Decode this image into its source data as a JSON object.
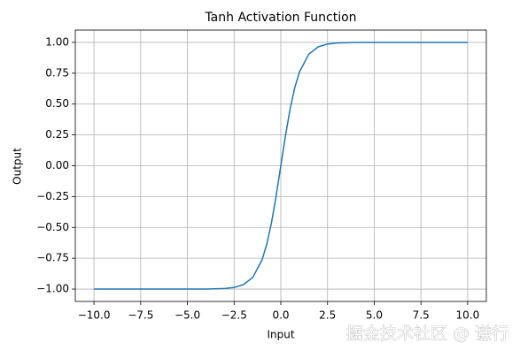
{
  "chart_data": {
    "type": "line",
    "title": "Tanh Activation Function",
    "x_label": "Input",
    "y_label": "Output",
    "x": [
      -10,
      -5,
      -4,
      -3,
      -2.5,
      -2,
      -1.5,
      -1,
      -0.75,
      -0.5,
      -0.25,
      0,
      0.25,
      0.5,
      0.75,
      1,
      1.5,
      2,
      2.5,
      3,
      4,
      5,
      10
    ],
    "series": [
      {
        "name": "tanh",
        "color": "#1f77b4",
        "values": [
          -1.0,
          -0.9999,
          -0.9993,
          -0.9951,
          -0.9866,
          -0.964,
          -0.9051,
          -0.7616,
          -0.6351,
          -0.4621,
          -0.2449,
          0,
          0.2449,
          0.4621,
          0.6351,
          0.7616,
          0.9051,
          0.964,
          0.9866,
          0.9951,
          0.9993,
          0.9999,
          1.0
        ]
      }
    ],
    "xlim": [
      -11,
      11
    ],
    "xticks": [
      {
        "value": -10,
        "label": "−10.0"
      },
      {
        "value": -7.5,
        "label": "−7.5"
      },
      {
        "value": -5,
        "label": "−5.0"
      },
      {
        "value": -2.5,
        "label": "−2.5"
      },
      {
        "value": 0,
        "label": "0.0"
      },
      2.5,
      {
        "value": 5,
        "label": "5.0"
      },
      7.5,
      {
        "value": 10,
        "label": "10.0"
      }
    ],
    "ylim": [
      -1.1,
      1.1
    ],
    "yticks": [
      {
        "value": -1,
        "label": "−1.00"
      },
      {
        "value": -0.75,
        "label": "−0.75"
      },
      {
        "value": -0.5,
        "label": "−0.50"
      },
      {
        "value": -0.25,
        "label": "−0.25"
      },
      {
        "value": 0,
        "label": "0.00"
      },
      0.25,
      {
        "value": 0.5,
        "label": "0.50"
      },
      0.75,
      {
        "value": 1,
        "label": "1.00"
      }
    ],
    "grid": true
  },
  "watermark": "掘金技术社区 @ 谦行"
}
